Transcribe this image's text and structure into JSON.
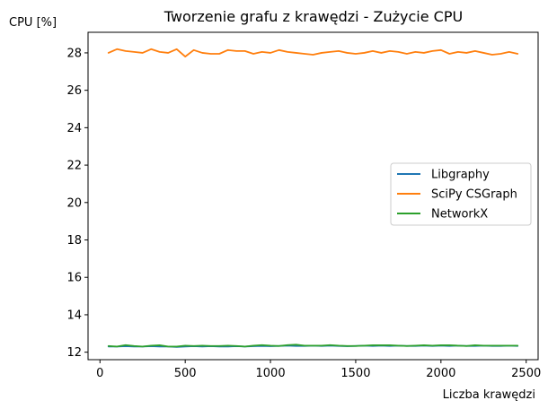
{
  "chart_data": {
    "type": "line",
    "title": "Tworzenie grafu z krawędzi - Zużycie CPU",
    "xlabel": "Liczba krawędzi",
    "ylabel": "CPU [%]",
    "xlim": [
      -70,
      2570
    ],
    "ylim": [
      11.6,
      29.1
    ],
    "xticks": [
      0,
      500,
      1000,
      1500,
      2000,
      2500
    ],
    "yticks": [
      12,
      14,
      16,
      18,
      20,
      22,
      24,
      26,
      28
    ],
    "grid": false,
    "legend_position": "center-right",
    "x": [
      50,
      100,
      150,
      200,
      250,
      300,
      350,
      400,
      450,
      500,
      550,
      600,
      650,
      700,
      750,
      800,
      850,
      900,
      950,
      1000,
      1050,
      1100,
      1150,
      1200,
      1250,
      1300,
      1350,
      1400,
      1450,
      1500,
      1550,
      1600,
      1650,
      1700,
      1750,
      1800,
      1850,
      1900,
      1950,
      2000,
      2050,
      2100,
      2150,
      2200,
      2250,
      2300,
      2350,
      2400,
      2450
    ],
    "series": [
      {
        "name": "Libgraphy",
        "color": "#1f77b4",
        "values": [
          12.3,
          12.3,
          12.32,
          12.3,
          12.3,
          12.32,
          12.3,
          12.3,
          12.28,
          12.3,
          12.32,
          12.3,
          12.32,
          12.3,
          12.3,
          12.32,
          12.3,
          12.32,
          12.33,
          12.32,
          12.33,
          12.35,
          12.33,
          12.33,
          12.35,
          12.33,
          12.35,
          12.33,
          12.32,
          12.33,
          12.35,
          12.33,
          12.35,
          12.33,
          12.35,
          12.33,
          12.33,
          12.35,
          12.33,
          12.35,
          12.33,
          12.35,
          12.33,
          12.33,
          12.35,
          12.33,
          12.33,
          12.35,
          12.33
        ]
      },
      {
        "name": "SciPy CSGraph",
        "color": "#ff7f0e",
        "values": [
          28.0,
          28.2,
          28.1,
          28.05,
          28.0,
          28.2,
          28.05,
          28.0,
          28.2,
          27.8,
          28.15,
          28.0,
          27.95,
          27.95,
          28.15,
          28.1,
          28.1,
          27.95,
          28.05,
          28.0,
          28.15,
          28.05,
          28.0,
          27.95,
          27.9,
          28.0,
          28.05,
          28.1,
          28.0,
          27.95,
          28.0,
          28.1,
          28.0,
          28.1,
          28.05,
          27.95,
          28.05,
          28.0,
          28.1,
          28.15,
          27.95,
          28.05,
          28.0,
          28.1,
          28.0,
          27.9,
          27.95,
          28.05,
          27.95
        ]
      },
      {
        "name": "NetworkX",
        "color": "#2ca02c",
        "values": [
          12.33,
          12.3,
          12.38,
          12.33,
          12.3,
          12.35,
          12.37,
          12.3,
          12.3,
          12.35,
          12.33,
          12.35,
          12.33,
          12.33,
          12.35,
          12.33,
          12.3,
          12.35,
          12.38,
          12.35,
          12.33,
          12.38,
          12.4,
          12.35,
          12.35,
          12.35,
          12.38,
          12.35,
          12.33,
          12.33,
          12.35,
          12.37,
          12.37,
          12.37,
          12.35,
          12.33,
          12.35,
          12.37,
          12.35,
          12.37,
          12.37,
          12.35,
          12.33,
          12.37,
          12.35,
          12.35,
          12.35,
          12.35,
          12.35
        ]
      }
    ]
  }
}
